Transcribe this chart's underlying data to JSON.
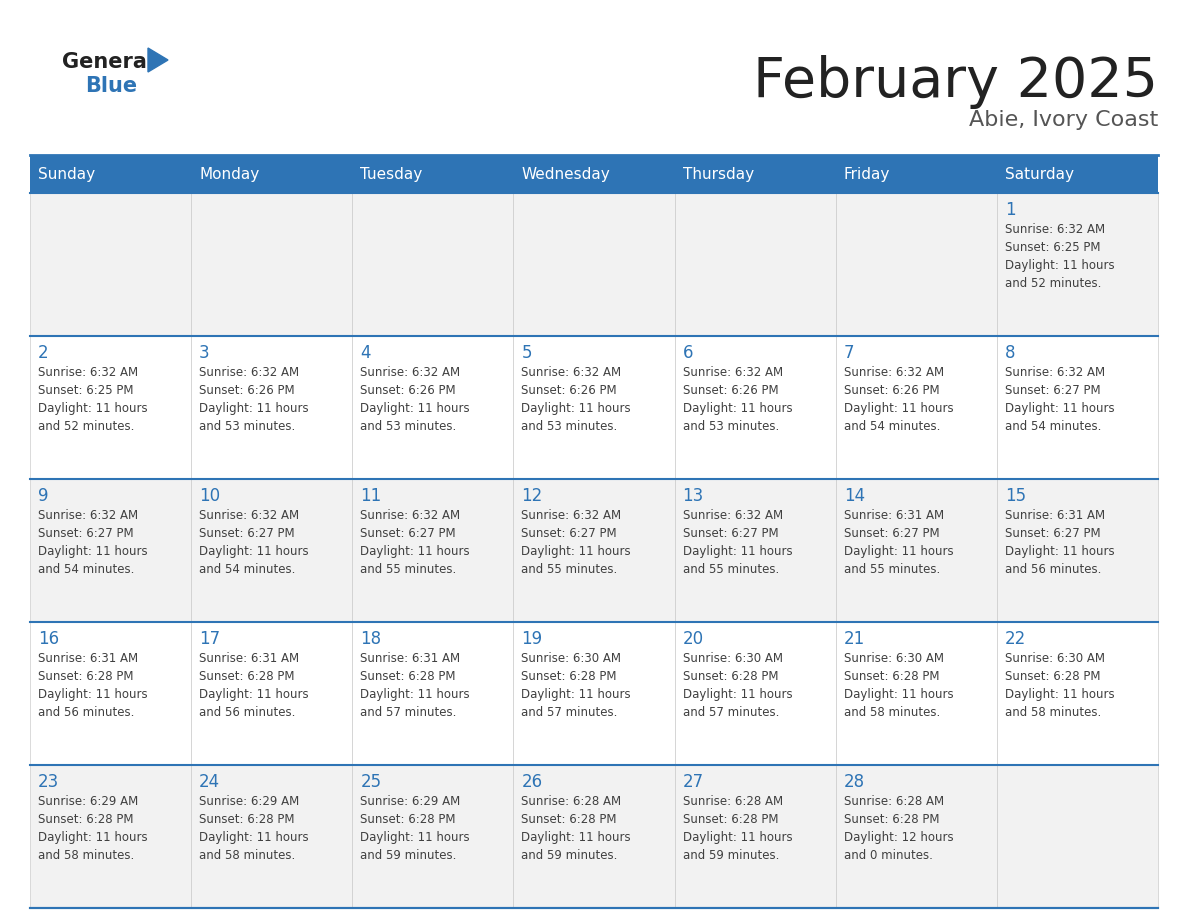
{
  "title": "February 2025",
  "subtitle": "Abie, Ivory Coast",
  "header_bg": "#2E74B5",
  "header_text_color": "#FFFFFF",
  "cell_bg_row0": "#F2F2F2",
  "cell_bg_row1": "#FFFFFF",
  "day_number_color": "#2E74B5",
  "info_text_color": "#404040",
  "grid_color": "#CCCCCC",
  "separator_color": "#2E74B5",
  "days_of_week": [
    "Sunday",
    "Monday",
    "Tuesday",
    "Wednesday",
    "Thursday",
    "Friday",
    "Saturday"
  ],
  "logo_general_color": "#222222",
  "logo_blue_color": "#2E74B5",
  "logo_triangle_color": "#2E74B5",
  "title_color": "#222222",
  "subtitle_color": "#555555",
  "calendar_data": [
    [
      null,
      null,
      null,
      null,
      null,
      null,
      {
        "day": "1",
        "sunrise": "6:32 AM",
        "sunset": "6:25 PM",
        "daylight1": "Daylight: 11 hours",
        "daylight2": "and 52 minutes."
      }
    ],
    [
      {
        "day": "2",
        "sunrise": "6:32 AM",
        "sunset": "6:25 PM",
        "daylight1": "Daylight: 11 hours",
        "daylight2": "and 52 minutes."
      },
      {
        "day": "3",
        "sunrise": "6:32 AM",
        "sunset": "6:26 PM",
        "daylight1": "Daylight: 11 hours",
        "daylight2": "and 53 minutes."
      },
      {
        "day": "4",
        "sunrise": "6:32 AM",
        "sunset": "6:26 PM",
        "daylight1": "Daylight: 11 hours",
        "daylight2": "and 53 minutes."
      },
      {
        "day": "5",
        "sunrise": "6:32 AM",
        "sunset": "6:26 PM",
        "daylight1": "Daylight: 11 hours",
        "daylight2": "and 53 minutes."
      },
      {
        "day": "6",
        "sunrise": "6:32 AM",
        "sunset": "6:26 PM",
        "daylight1": "Daylight: 11 hours",
        "daylight2": "and 53 minutes."
      },
      {
        "day": "7",
        "sunrise": "6:32 AM",
        "sunset": "6:26 PM",
        "daylight1": "Daylight: 11 hours",
        "daylight2": "and 54 minutes."
      },
      {
        "day": "8",
        "sunrise": "6:32 AM",
        "sunset": "6:27 PM",
        "daylight1": "Daylight: 11 hours",
        "daylight2": "and 54 minutes."
      }
    ],
    [
      {
        "day": "9",
        "sunrise": "6:32 AM",
        "sunset": "6:27 PM",
        "daylight1": "Daylight: 11 hours",
        "daylight2": "and 54 minutes."
      },
      {
        "day": "10",
        "sunrise": "6:32 AM",
        "sunset": "6:27 PM",
        "daylight1": "Daylight: 11 hours",
        "daylight2": "and 54 minutes."
      },
      {
        "day": "11",
        "sunrise": "6:32 AM",
        "sunset": "6:27 PM",
        "daylight1": "Daylight: 11 hours",
        "daylight2": "and 55 minutes."
      },
      {
        "day": "12",
        "sunrise": "6:32 AM",
        "sunset": "6:27 PM",
        "daylight1": "Daylight: 11 hours",
        "daylight2": "and 55 minutes."
      },
      {
        "day": "13",
        "sunrise": "6:32 AM",
        "sunset": "6:27 PM",
        "daylight1": "Daylight: 11 hours",
        "daylight2": "and 55 minutes."
      },
      {
        "day": "14",
        "sunrise": "6:31 AM",
        "sunset": "6:27 PM",
        "daylight1": "Daylight: 11 hours",
        "daylight2": "and 55 minutes."
      },
      {
        "day": "15",
        "sunrise": "6:31 AM",
        "sunset": "6:27 PM",
        "daylight1": "Daylight: 11 hours",
        "daylight2": "and 56 minutes."
      }
    ],
    [
      {
        "day": "16",
        "sunrise": "6:31 AM",
        "sunset": "6:28 PM",
        "daylight1": "Daylight: 11 hours",
        "daylight2": "and 56 minutes."
      },
      {
        "day": "17",
        "sunrise": "6:31 AM",
        "sunset": "6:28 PM",
        "daylight1": "Daylight: 11 hours",
        "daylight2": "and 56 minutes."
      },
      {
        "day": "18",
        "sunrise": "6:31 AM",
        "sunset": "6:28 PM",
        "daylight1": "Daylight: 11 hours",
        "daylight2": "and 57 minutes."
      },
      {
        "day": "19",
        "sunrise": "6:30 AM",
        "sunset": "6:28 PM",
        "daylight1": "Daylight: 11 hours",
        "daylight2": "and 57 minutes."
      },
      {
        "day": "20",
        "sunrise": "6:30 AM",
        "sunset": "6:28 PM",
        "daylight1": "Daylight: 11 hours",
        "daylight2": "and 57 minutes."
      },
      {
        "day": "21",
        "sunrise": "6:30 AM",
        "sunset": "6:28 PM",
        "daylight1": "Daylight: 11 hours",
        "daylight2": "and 58 minutes."
      },
      {
        "day": "22",
        "sunrise": "6:30 AM",
        "sunset": "6:28 PM",
        "daylight1": "Daylight: 11 hours",
        "daylight2": "and 58 minutes."
      }
    ],
    [
      {
        "day": "23",
        "sunrise": "6:29 AM",
        "sunset": "6:28 PM",
        "daylight1": "Daylight: 11 hours",
        "daylight2": "and 58 minutes."
      },
      {
        "day": "24",
        "sunrise": "6:29 AM",
        "sunset": "6:28 PM",
        "daylight1": "Daylight: 11 hours",
        "daylight2": "and 58 minutes."
      },
      {
        "day": "25",
        "sunrise": "6:29 AM",
        "sunset": "6:28 PM",
        "daylight1": "Daylight: 11 hours",
        "daylight2": "and 59 minutes."
      },
      {
        "day": "26",
        "sunrise": "6:28 AM",
        "sunset": "6:28 PM",
        "daylight1": "Daylight: 11 hours",
        "daylight2": "and 59 minutes."
      },
      {
        "day": "27",
        "sunrise": "6:28 AM",
        "sunset": "6:28 PM",
        "daylight1": "Daylight: 11 hours",
        "daylight2": "and 59 minutes."
      },
      {
        "day": "28",
        "sunrise": "6:28 AM",
        "sunset": "6:28 PM",
        "daylight1": "Daylight: 12 hours",
        "daylight2": "and 0 minutes."
      },
      null
    ]
  ]
}
